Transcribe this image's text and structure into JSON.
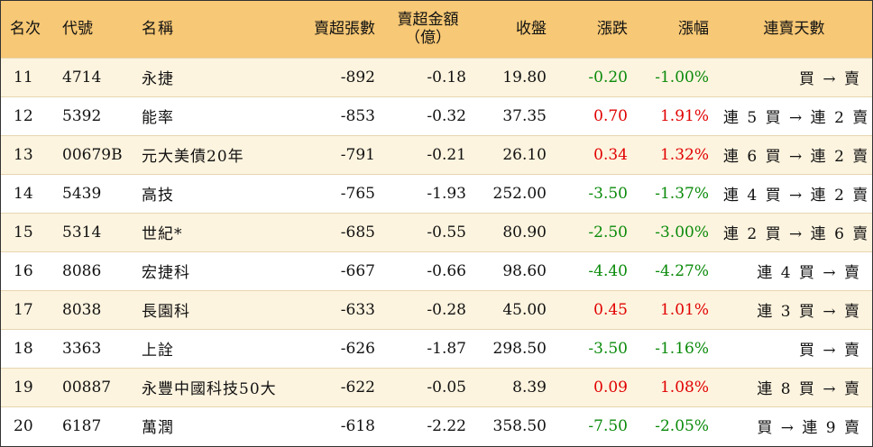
{
  "colors": {
    "header_bg": "#f7c875",
    "alt_row_bg": "#fdf4df",
    "up": "#e00000",
    "down": "#0a8a0a"
  },
  "headers": {
    "rank": "名次",
    "code": "代號",
    "name": "名稱",
    "net_sell_lots": "賣超張數",
    "net_sell_amount_line1": "賣超金額",
    "net_sell_amount_line2": "（億）",
    "close": "收盤",
    "change": "漲跌",
    "change_pct": "漲幅",
    "streak": "連賣天數"
  },
  "rows": [
    {
      "rank": "11",
      "code": "4714",
      "name": "永捷",
      "lots": "-892",
      "amount": "-0.18",
      "close": "19.80",
      "change": "-0.20",
      "pct": "-1.00%",
      "dir": "down",
      "streak": "買 → 賣"
    },
    {
      "rank": "12",
      "code": "5392",
      "name": "能率",
      "lots": "-853",
      "amount": "-0.32",
      "close": "37.35",
      "change": "0.70",
      "pct": "1.91%",
      "dir": "up",
      "streak": "連 5 買 → 連 2 賣"
    },
    {
      "rank": "13",
      "code": "00679B",
      "name": "元大美債20年",
      "lots": "-791",
      "amount": "-0.21",
      "close": "26.10",
      "change": "0.34",
      "pct": "1.32%",
      "dir": "up",
      "streak": "連 6 買 → 連 2 賣"
    },
    {
      "rank": "14",
      "code": "5439",
      "name": "高技",
      "lots": "-765",
      "amount": "-1.93",
      "close": "252.00",
      "change": "-3.50",
      "pct": "-1.37%",
      "dir": "down",
      "streak": "連 4 買 → 連 2 賣"
    },
    {
      "rank": "15",
      "code": "5314",
      "name": "世紀*",
      "lots": "-685",
      "amount": "-0.55",
      "close": "80.90",
      "change": "-2.50",
      "pct": "-3.00%",
      "dir": "down",
      "streak": "連 2 買 → 連 6 賣"
    },
    {
      "rank": "16",
      "code": "8086",
      "name": "宏捷科",
      "lots": "-667",
      "amount": "-0.66",
      "close": "98.60",
      "change": "-4.40",
      "pct": "-4.27%",
      "dir": "down",
      "streak": "連 4 買 → 賣"
    },
    {
      "rank": "17",
      "code": "8038",
      "name": "長園科",
      "lots": "-633",
      "amount": "-0.28",
      "close": "45.00",
      "change": "0.45",
      "pct": "1.01%",
      "dir": "up",
      "streak": "連 3 買 → 賣"
    },
    {
      "rank": "18",
      "code": "3363",
      "name": "上詮",
      "lots": "-626",
      "amount": "-1.87",
      "close": "298.50",
      "change": "-3.50",
      "pct": "-1.16%",
      "dir": "down",
      "streak": "買 → 賣"
    },
    {
      "rank": "19",
      "code": "00887",
      "name": "永豐中國科技50大",
      "lots": "-622",
      "amount": "-0.05",
      "close": "8.39",
      "change": "0.09",
      "pct": "1.08%",
      "dir": "up",
      "streak": "連 8 買 → 賣"
    },
    {
      "rank": "20",
      "code": "6187",
      "name": "萬潤",
      "lots": "-618",
      "amount": "-2.22",
      "close": "358.50",
      "change": "-7.50",
      "pct": "-2.05%",
      "dir": "down",
      "streak": "買 → 連 9 賣"
    }
  ]
}
